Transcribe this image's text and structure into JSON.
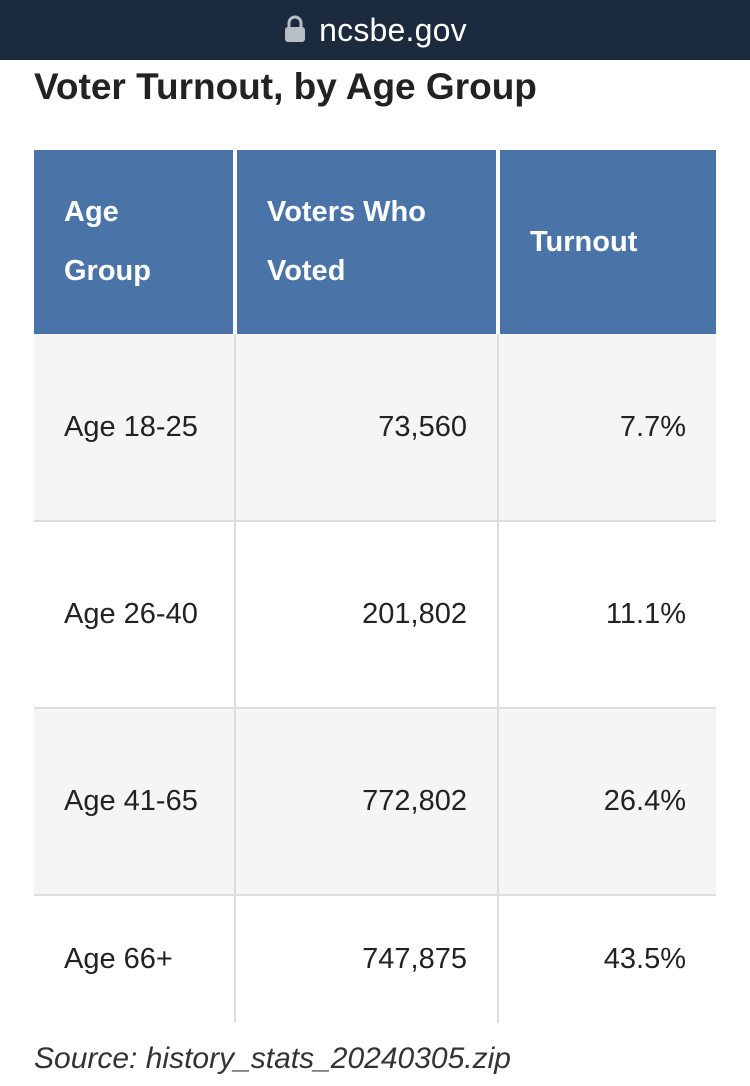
{
  "browser": {
    "domain": "ncsbe.gov",
    "lock_icon": "lock-icon"
  },
  "title": "Voter Turnout, by Age Group",
  "table": {
    "headers": [
      "Age Group",
      "Voters Who Voted",
      "Turnout"
    ],
    "rows": [
      {
        "age_group": "Age 18-25",
        "voters": "73,560",
        "turnout": "7.7%"
      },
      {
        "age_group": "Age 26-40",
        "voters": "201,802",
        "turnout": "11.1%"
      },
      {
        "age_group": "Age 41-65",
        "voters": "772,802",
        "turnout": "26.4%"
      },
      {
        "age_group": "Age 66+",
        "voters": "747,875",
        "turnout": "43.5%"
      }
    ]
  },
  "source": "Source: history_stats_20240305.zip",
  "colors": {
    "url_bar": "#1c2a3d",
    "header_bg": "#4a74a8",
    "stripe": "#f5f5f5"
  }
}
